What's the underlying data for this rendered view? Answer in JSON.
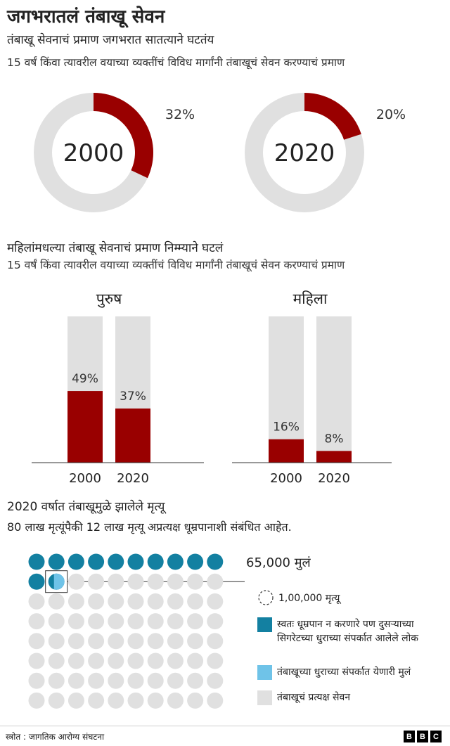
{
  "header": {
    "title": "जगभरातलं तंबाखू सेवन"
  },
  "section1": {
    "subtitle": "तंबाखू सेवनाचं प्रमाण जगभरात सातत्याने घटतंय",
    "description": "15 वर्षं किंवा त्यावरील वयाच्या व्यक्तींचं विविध मार्गांनी तंबाखूचं सेवन करण्याचं प्रमाण"
  },
  "section2": {
    "subtitle": "महिलांमधल्या तंबाखू सेवनाचं प्रमाण निम्म्याने घटलं",
    "description": "15 वर्षं किंवा त्यावरील वयाच्या व्यक्तींचं विविध मार्गांनी तंबाखूचं सेवन करण्याचं प्रमाण"
  },
  "section3": {
    "subtitle": "2020 वर्षात तंबाखूमुळे झालेले मृत्यू",
    "description": "80 लाख मृत्यूंपैकी 12 लाख मृत्यू अप्रत्यक्ष धूम्रपानाशी संबंधित आहेत.",
    "callout": "65,000 मुलं",
    "legend": {
      "unit": "1,00,000 मृत्यू",
      "nonsmokers": "स्वतः धूम्रपान न करणारे पण दुसऱ्याच्या सिगरेटच्या धुराच्या संपर्कात आलेले लोक",
      "children": "तंबाखूच्या धुराच्या संपर्कात येणारी मुलं",
      "direct": "तंबाखूचं प्रत्यक्ष सेवन"
    }
  },
  "footer": {
    "source": "स्त्रोत : जागतिक आरोग्य संघटना",
    "logo_letters": [
      "B",
      "B",
      "C"
    ]
  },
  "colors": {
    "dark_red": "#990000",
    "light_gray": "#e0e0e0",
    "teal": "#1380a1",
    "light_blue": "#6fc3e8"
  },
  "chart_data": [
    {
      "type": "pie",
      "style": "donut",
      "categories": [
        "2000",
        "2020"
      ],
      "values": [
        32,
        20
      ],
      "value_labels": [
        "32%",
        "20%"
      ]
    },
    {
      "type": "bar",
      "groups": [
        {
          "name": "पुरुष",
          "categories": [
            "2000",
            "2020"
          ],
          "values": [
            49,
            37
          ],
          "value_labels": [
            "49%",
            "37%"
          ]
        },
        {
          "name": "महिला",
          "categories": [
            "2000",
            "2020"
          ],
          "values": [
            16,
            8
          ],
          "value_labels": [
            "16%",
            "8%"
          ]
        }
      ],
      "ylim": [
        0,
        100
      ]
    },
    {
      "type": "unit",
      "unit_value": 100000,
      "total_units": 80,
      "nonsmokers_units": 11.35,
      "children_units": 0.65,
      "columns": 10
    }
  ]
}
